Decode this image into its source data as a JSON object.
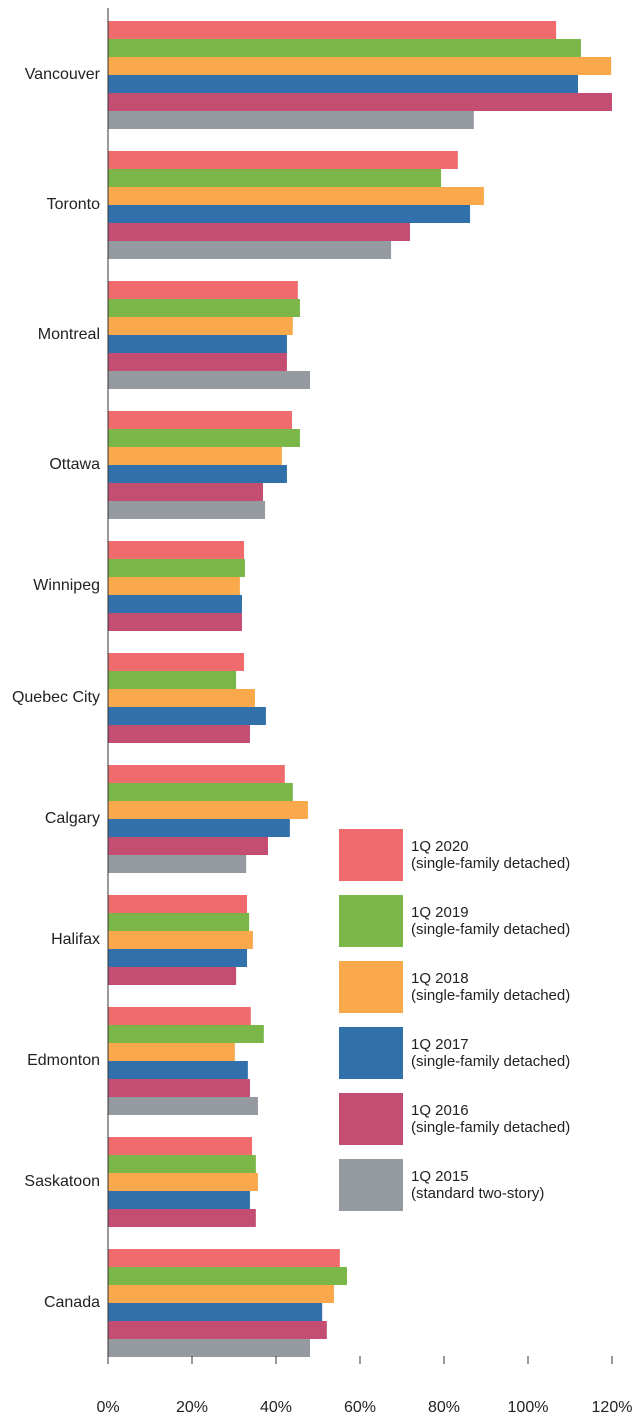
{
  "chart_data": {
    "type": "hbar",
    "categories": [
      "Vancouver",
      "Toronto",
      "Montreal",
      "Ottawa",
      "Winnipeg",
      "Quebec City",
      "Calgary",
      "Halifax",
      "Edmonton",
      "Saskatoon",
      "Canada"
    ],
    "series": [
      {
        "name": "1Q 2020\n(single-family detached)",
        "color": "#f06b6e",
        "values": [
          106.7,
          83.3,
          45.2,
          43.8,
          32.4,
          32.4,
          42.1,
          33.1,
          34.0,
          34.3,
          55.2
        ]
      },
      {
        "name": "1Q 2019\n(single-family detached)",
        "color": "#7ab648",
        "values": [
          112.6,
          79.3,
          45.7,
          45.7,
          32.6,
          30.5,
          44.0,
          33.6,
          37.1,
          35.2,
          56.9
        ]
      },
      {
        "name": "1Q 2018\n(single-family detached)",
        "color": "#f9a94b",
        "values": [
          119.8,
          89.5,
          44.0,
          41.4,
          31.4,
          35.0,
          47.6,
          34.5,
          30.2,
          35.7,
          53.8
        ]
      },
      {
        "name": "1Q 2017\n(single-family detached)",
        "color": "#3270ab",
        "values": [
          111.9,
          86.2,
          42.6,
          42.6,
          31.9,
          37.6,
          43.3,
          33.1,
          33.3,
          33.8,
          51.0
        ]
      },
      {
        "name": "1Q 2016\n(single-family detached)",
        "color": "#c44d72",
        "values": [
          120.0,
          71.9,
          42.6,
          36.9,
          31.9,
          33.8,
          38.1,
          30.5,
          33.8,
          35.2,
          52.1
        ]
      },
      {
        "name": "1Q 2015\n(standard two-story)",
        "color": "#9599a0",
        "values": [
          87.1,
          67.4,
          48.1,
          37.4,
          null,
          null,
          32.9,
          null,
          35.7,
          null,
          48.1
        ]
      }
    ],
    "xlim": [
      0,
      120
    ],
    "xticks": [
      {
        "value": 0,
        "label": "0%"
      },
      {
        "value": 20,
        "label": "20%"
      },
      {
        "value": 40,
        "label": "40%"
      },
      {
        "value": 60,
        "label": "60%"
      },
      {
        "value": 80,
        "label": "80%"
      },
      {
        "value": 100,
        "label": "100%"
      },
      {
        "value": 120,
        "label": "120%"
      }
    ]
  }
}
